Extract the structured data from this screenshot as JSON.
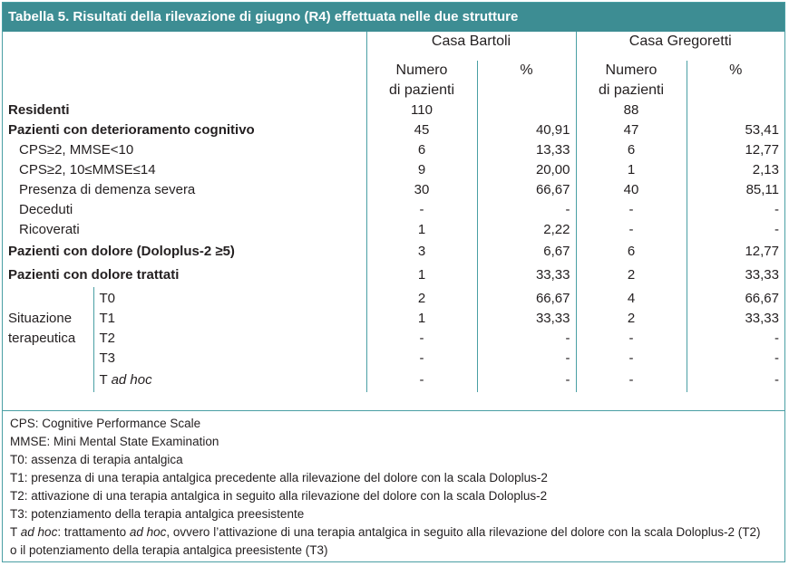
{
  "title": "Tabella 5. Risultati della rilevazione di giugno (R4) effettuata nelle due strutture",
  "title_prefix": "Tabella 5.",
  "title_rest": " Risultati della rilevazione di giugno (R4) effettuata nelle due strutture",
  "colors": {
    "header_bg": "#3d8d93",
    "border": "#4a9fa4"
  },
  "groups": {
    "bartoli": "Casa Bartoli",
    "gregoretti": "Casa Gregoretti"
  },
  "subheads": {
    "numero": "Numero",
    "di_pazienti": "di pazienti",
    "percent": "%"
  },
  "rows": {
    "residenti": {
      "label": "Residenti",
      "b_n": "110",
      "b_p": "",
      "g_n": "88",
      "g_p": ""
    },
    "deterioramento": {
      "label": "Pazienti con deterioramento cognitivo",
      "b_n": "45",
      "b_p": "40,91",
      "g_n": "47",
      "g_p": "53,41"
    },
    "cps_mmse10": {
      "label": "CPS≥2, MMSE<10",
      "b_n": "6",
      "b_p": "13,33",
      "g_n": "6",
      "g_p": "12,77"
    },
    "cps_mmse14": {
      "label": "CPS≥2, 10≤MMSE≤14",
      "b_n": "9",
      "b_p": "20,00",
      "g_n": "1",
      "g_p": "2,13"
    },
    "demenza": {
      "label": "Presenza di demenza severa",
      "b_n": "30",
      "b_p": "66,67",
      "g_n": "40",
      "g_p": "85,11"
    },
    "deceduti": {
      "label": "Deceduti",
      "b_n": "-",
      "b_p": "-",
      "g_n": "-",
      "g_p": "-"
    },
    "ricoverati": {
      "label": "Ricoverati",
      "b_n": "1",
      "b_p": "2,22",
      "g_n": "-",
      "g_p": "-"
    },
    "dolore": {
      "label": "Pazienti con dolore (Doloplus-2 ≥5)",
      "b_n": "3",
      "b_p": "6,67",
      "g_n": "6",
      "g_p": "12,77"
    },
    "dolore_trattati": {
      "label": "Pazienti con dolore trattati",
      "b_n": "1",
      "b_p": "33,33",
      "g_n": "2",
      "g_p": "33,33"
    }
  },
  "situazione": {
    "label_line1": "Situazione",
    "label_line2": "terapeutica",
    "t0": {
      "label": "T0",
      "b_n": "2",
      "b_p": "66,67",
      "g_n": "4",
      "g_p": "66,67"
    },
    "t1": {
      "label": "T1",
      "b_n": "1",
      "b_p": "33,33",
      "g_n": "2",
      "g_p": "33,33"
    },
    "t2": {
      "label": "T2",
      "b_n": "-",
      "b_p": "-",
      "g_n": "-",
      "g_p": "-"
    },
    "t3": {
      "label": "T3",
      "b_n": "-",
      "b_p": "-",
      "g_n": "-",
      "g_p": "-"
    },
    "tadhoc": {
      "label_t": "T",
      "label_ad_hoc": "ad hoc",
      "b_n": "-",
      "b_p": "-",
      "g_n": "-",
      "g_p": "-"
    }
  },
  "notes": {
    "cps": "CPS: Cognitive Performance Scale",
    "mmse": "MMSE: Mini Mental State Examination",
    "t0": "T0: assenza di terapia antalgica",
    "t1": "T1: presenza di una terapia antalgica precedente alla rilevazione del dolore con la scala Doloplus-2",
    "t2": "T2: attivazione di una terapia antalgica in seguito alla rilevazione del dolore con la scala Doloplus-2",
    "t3": "T3: potenziamento della terapia antalgica preesistente",
    "tadhoc_t": "T",
    "tadhoc_ad_hoc": "ad hoc",
    "tadhoc_mid": ": trattamento ",
    "tadhoc_ad_hoc2": "ad hoc",
    "tadhoc_rest": ", ovvero l’attivazione di una terapia antalgica in seguito alla rilevazione del dolore con la scala Doloplus-2 (T2)",
    "tadhoc_line2": "o il potenziamento della terapia antalgica preesistente (T3)"
  }
}
